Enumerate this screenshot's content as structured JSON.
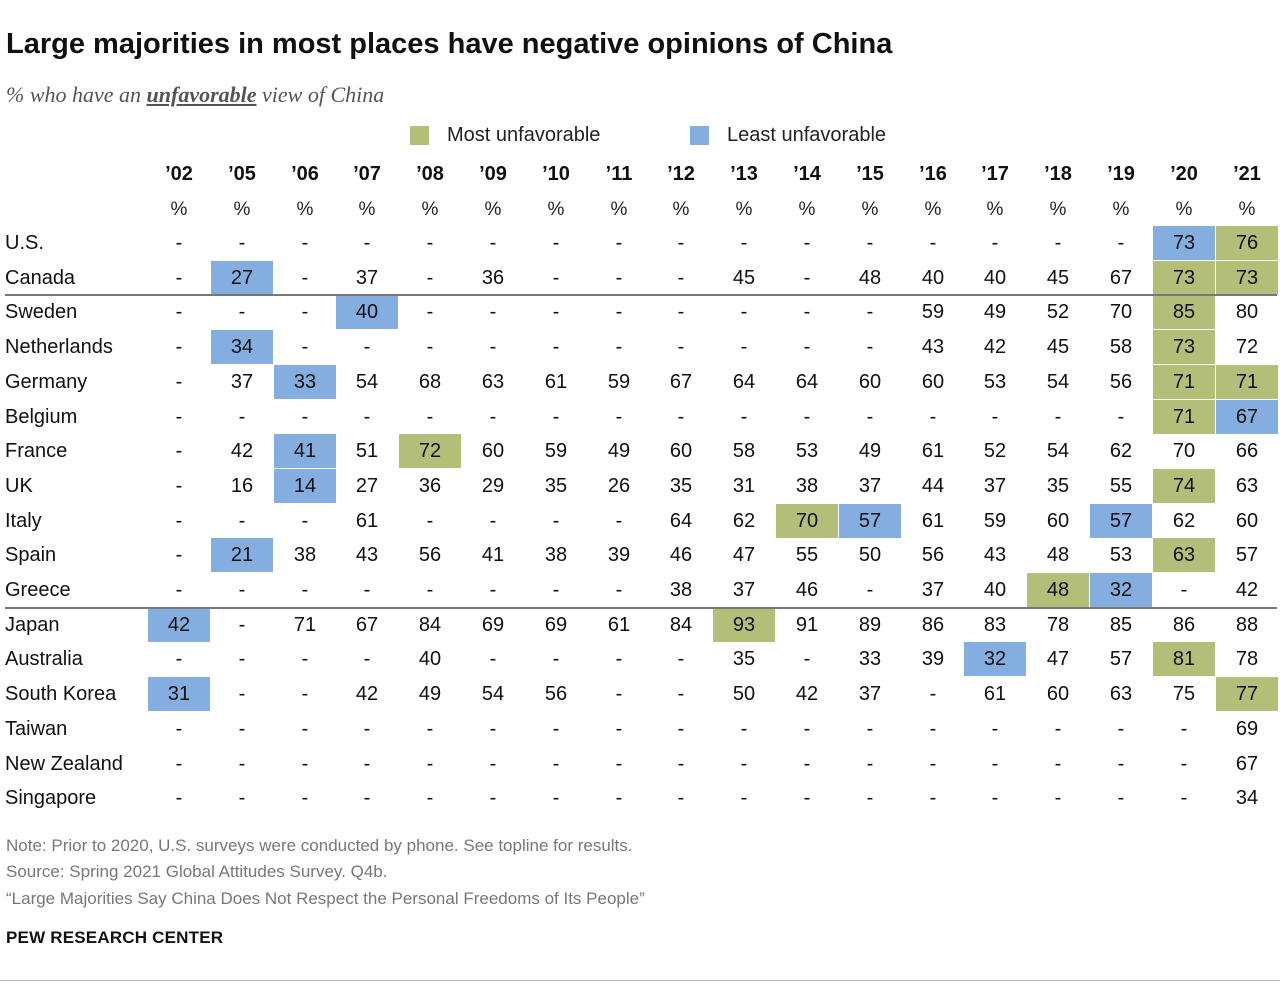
{
  "chart_data": {
    "type": "table",
    "title": "Large majorities in most places have negative opinions of China",
    "subtitle_prefix": "% who have an ",
    "subtitle_emphasis": "unfavorable",
    "subtitle_suffix": " view of China",
    "legend": {
      "most": "Most unfavorable",
      "least": "Least unfavorable"
    },
    "colors": {
      "most": "#b3be78",
      "least": "#84aedf"
    },
    "years": [
      "’02",
      "’05",
      "’06",
      "’07",
      "’08",
      "’09",
      "’10",
      "’11",
      "’12",
      "’13",
      "’14",
      "’15",
      "’16",
      "’17",
      "’18",
      "’19",
      "’20",
      "’21"
    ],
    "unit": "%",
    "rows": [
      {
        "country": "U.S.",
        "values": [
          "-",
          "-",
          "-",
          "-",
          "-",
          "-",
          "-",
          "-",
          "-",
          "-",
          "-",
          "-",
          "-",
          "-",
          "-",
          "-",
          "73",
          "76"
        ],
        "most": [
          17
        ],
        "least": [
          16
        ]
      },
      {
        "country": "Canada",
        "values": [
          "-",
          "27",
          "-",
          "37",
          "-",
          "36",
          "-",
          "-",
          "-",
          "45",
          "-",
          "48",
          "40",
          "40",
          "45",
          "67",
          "73",
          "73"
        ],
        "most": [
          16,
          17
        ],
        "least": [
          1
        ]
      },
      {
        "country": "Sweden",
        "values": [
          "-",
          "-",
          "-",
          "40",
          "-",
          "-",
          "-",
          "-",
          "-",
          "-",
          "-",
          "-",
          "59",
          "49",
          "52",
          "70",
          "85",
          "80"
        ],
        "most": [
          16
        ],
        "least": [
          3
        ]
      },
      {
        "country": "Netherlands",
        "values": [
          "-",
          "34",
          "-",
          "-",
          "-",
          "-",
          "-",
          "-",
          "-",
          "-",
          "-",
          "-",
          "43",
          "42",
          "45",
          "58",
          "73",
          "72"
        ],
        "most": [
          16
        ],
        "least": [
          1
        ]
      },
      {
        "country": "Germany",
        "values": [
          "-",
          "37",
          "33",
          "54",
          "68",
          "63",
          "61",
          "59",
          "67",
          "64",
          "64",
          "60",
          "60",
          "53",
          "54",
          "56",
          "71",
          "71"
        ],
        "most": [
          16,
          17
        ],
        "least": [
          2
        ]
      },
      {
        "country": "Belgium",
        "values": [
          "-",
          "-",
          "-",
          "-",
          "-",
          "-",
          "-",
          "-",
          "-",
          "-",
          "-",
          "-",
          "-",
          "-",
          "-",
          "-",
          "71",
          "67"
        ],
        "most": [
          16
        ],
        "least": [
          17
        ]
      },
      {
        "country": "France",
        "values": [
          "-",
          "42",
          "41",
          "51",
          "72",
          "60",
          "59",
          "49",
          "60",
          "58",
          "53",
          "49",
          "61",
          "52",
          "54",
          "62",
          "70",
          "66"
        ],
        "most": [
          4
        ],
        "least": [
          2
        ]
      },
      {
        "country": "UK",
        "values": [
          "-",
          "16",
          "14",
          "27",
          "36",
          "29",
          "35",
          "26",
          "35",
          "31",
          "38",
          "37",
          "44",
          "37",
          "35",
          "55",
          "74",
          "63"
        ],
        "most": [
          16
        ],
        "least": [
          2
        ]
      },
      {
        "country": "Italy",
        "values": [
          "-",
          "-",
          "-",
          "61",
          "-",
          "-",
          "-",
          "-",
          "64",
          "62",
          "70",
          "57",
          "61",
          "59",
          "60",
          "57",
          "62",
          "60"
        ],
        "most": [
          10
        ],
        "least": [
          11,
          15
        ]
      },
      {
        "country": "Spain",
        "values": [
          "-",
          "21",
          "38",
          "43",
          "56",
          "41",
          "38",
          "39",
          "46",
          "47",
          "55",
          "50",
          "56",
          "43",
          "48",
          "53",
          "63",
          "57"
        ],
        "most": [
          16
        ],
        "least": [
          1
        ]
      },
      {
        "country": "Greece",
        "values": [
          "-",
          "-",
          "-",
          "-",
          "-",
          "-",
          "-",
          "-",
          "38",
          "37",
          "46",
          "-",
          "37",
          "40",
          "48",
          "32",
          "-",
          "42"
        ],
        "most": [
          14
        ],
        "least": [
          15
        ]
      },
      {
        "country": "Japan",
        "values": [
          "42",
          "-",
          "71",
          "67",
          "84",
          "69",
          "69",
          "61",
          "84",
          "93",
          "91",
          "89",
          "86",
          "83",
          "78",
          "85",
          "86",
          "88"
        ],
        "most": [
          9
        ],
        "least": [
          0
        ]
      },
      {
        "country": "Australia",
        "values": [
          "-",
          "-",
          "-",
          "-",
          "40",
          "-",
          "-",
          "-",
          "-",
          "35",
          "-",
          "33",
          "39",
          "32",
          "47",
          "57",
          "81",
          "78"
        ],
        "most": [
          16
        ],
        "least": [
          13
        ]
      },
      {
        "country": "South Korea",
        "values": [
          "31",
          "-",
          "-",
          "42",
          "49",
          "54",
          "56",
          "-",
          "-",
          "50",
          "42",
          "37",
          "-",
          "61",
          "60",
          "63",
          "75",
          "77"
        ],
        "most": [
          17
        ],
        "least": [
          0
        ]
      },
      {
        "country": "Taiwan",
        "values": [
          "-",
          "-",
          "-",
          "-",
          "-",
          "-",
          "-",
          "-",
          "-",
          "-",
          "-",
          "-",
          "-",
          "-",
          "-",
          "-",
          "-",
          "69"
        ],
        "most": [],
        "least": []
      },
      {
        "country": "New Zealand",
        "values": [
          "-",
          "-",
          "-",
          "-",
          "-",
          "-",
          "-",
          "-",
          "-",
          "-",
          "-",
          "-",
          "-",
          "-",
          "-",
          "-",
          "-",
          "67"
        ],
        "most": [],
        "least": []
      },
      {
        "country": "Singapore",
        "values": [
          "-",
          "-",
          "-",
          "-",
          "-",
          "-",
          "-",
          "-",
          "-",
          "-",
          "-",
          "-",
          "-",
          "-",
          "-",
          "-",
          "-",
          "34"
        ],
        "most": [],
        "least": []
      }
    ],
    "group_breaks_after": [
      1,
      10
    ]
  },
  "notes": {
    "note": "Note: Prior to 2020, U.S. surveys were conducted by phone. See topline for results.",
    "source": "Source: Spring 2021 Global Attitudes Survey. Q4b.",
    "report": "“Large Majorities Say China Does Not Respect the Personal Freedoms of Its People”"
  },
  "brand": "PEW RESEARCH CENTER"
}
